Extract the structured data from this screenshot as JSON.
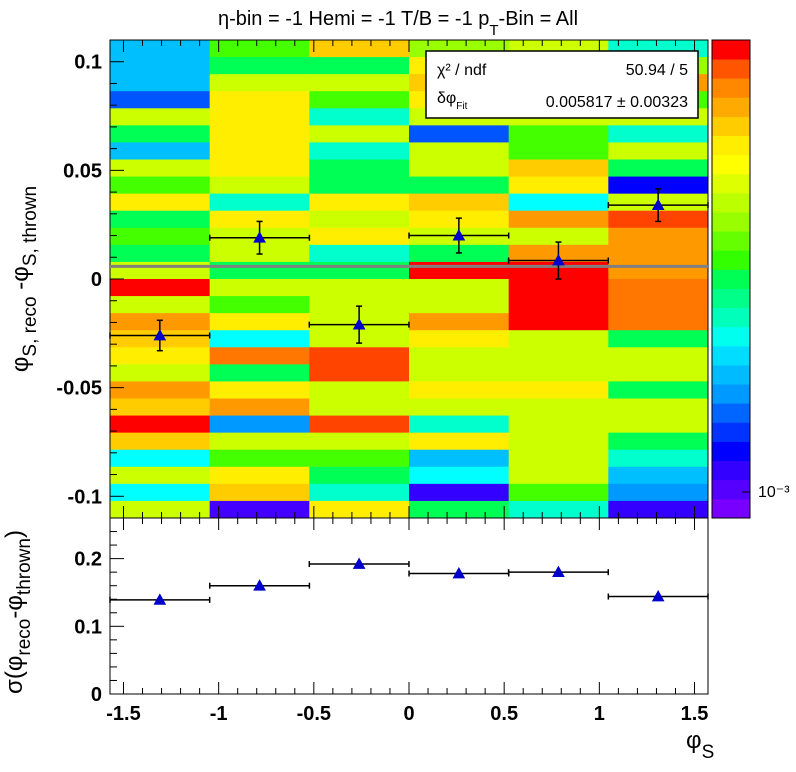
{
  "title": {
    "main": "η-bin = -1 Hemi = -1 T/B = -1 p",
    "sub": "T",
    "tail": "-Bin = All"
  },
  "stats": {
    "row1_label": "χ² / ndf",
    "row1_value": "50.94 / 5",
    "row2_label_main": "δφ",
    "row2_label_sub": "Fit",
    "row2_value": "0.005817 ± 0.00323"
  },
  "palette_label": "10⁻³",
  "chart_data": [
    {
      "type": "heatmap",
      "ylabel_main": "φ",
      "ylabel_sub1": "S, reco",
      "ylabel_mid": " -φ",
      "ylabel_sub2": "S, thrown",
      "xlim": [
        -1.5708,
        1.5708
      ],
      "ylim": [
        -0.11,
        0.11
      ],
      "yticks": [
        "0.1",
        "0.05",
        "0",
        "-0.05",
        "-0.1"
      ],
      "ytick_values": [
        0.1,
        0.05,
        0,
        -0.05,
        -0.1
      ],
      "x_bin_edges": [
        -1.5708,
        -1.0472,
        -0.5236,
        0.0,
        0.5236,
        1.0472,
        1.5708
      ],
      "n_y_bins": 28,
      "cell_colors": [
        [
          "#00bfff",
          "#44ff00",
          "#ffcc00",
          "#99ff00",
          "#ccff00",
          "#00ffcc"
        ],
        [
          "#00bfff",
          "#00ff55",
          "#00ff55",
          "#ffee00",
          "#ccff00",
          "#99ff00"
        ],
        [
          "#00bfff",
          "#ccff00",
          "#ccff00",
          "#ffcc00",
          "#ccff00",
          "#ff9900"
        ],
        [
          "#0055ff",
          "#ffee00",
          "#44ff00",
          "#ffee00",
          "#ccff00",
          "#44ff00"
        ],
        [
          "#ccff00",
          "#ffee00",
          "#00ffcc",
          "#ccff00",
          "#ccff00",
          "#ccff00"
        ],
        [
          "#00ff55",
          "#ffee00",
          "#ccff00",
          "#0055ff",
          "#44ff00",
          "#00ffcc"
        ],
        [
          "#00bfff",
          "#ffee00",
          "#00ffcc",
          "#ccff00",
          "#44ff00",
          "#ccff00"
        ],
        [
          "#ccff00",
          "#ffee00",
          "#00ff55",
          "#ccff00",
          "#ffcc00",
          "#00ff55"
        ],
        [
          "#44ff00",
          "#ccff00",
          "#00ff55",
          "#00ff55",
          "#ffee00",
          "#0000ff"
        ],
        [
          "#ffee00",
          "#00ffcc",
          "#ffee00",
          "#ffcc00",
          "#00ffff",
          "#ccff00"
        ],
        [
          "#00ff55",
          "#ffee00",
          "#ccff00",
          "#ffee00",
          "#ff9900",
          "#ff4400"
        ],
        [
          "#44ff00",
          "#ccff00",
          "#ffee00",
          "#ccff00",
          "#ccff00",
          "#ff9900"
        ],
        [
          "#00ff55",
          "#ccff00",
          "#00ffcc",
          "#00ff55",
          "#ff9900",
          "#ff9900"
        ],
        [
          "#ccff00",
          "#00ff55",
          "#00ff55",
          "#ff0000",
          "#ff0000",
          "#ff9900"
        ],
        [
          "#ff0000",
          "#ccff00",
          "#ccff00",
          "#ccff00",
          "#ff0000",
          "#ff7700"
        ],
        [
          "#ccff00",
          "#44ff00",
          "#ccff00",
          "#ccff00",
          "#ff0000",
          "#ff7700"
        ],
        [
          "#ff9900",
          "#ffee00",
          "#ccff00",
          "#ff9900",
          "#ff0000",
          "#ff7700"
        ],
        [
          "#ffcc00",
          "#00ffff",
          "#ccff00",
          "#ffee00",
          "#ccff00",
          "#00ff55"
        ],
        [
          "#ffee00",
          "#ff7700",
          "#ff4400",
          "#ccff00",
          "#ccff00",
          "#ccff00"
        ],
        [
          "#ccff00",
          "#00ff55",
          "#ff4400",
          "#ccff00",
          "#ccff00",
          "#ccff00"
        ],
        [
          "#ff9900",
          "#ffee00",
          "#ccff00",
          "#ffee00",
          "#ffee00",
          "#00ff55"
        ],
        [
          "#ffcc00",
          "#ff9900",
          "#ccff00",
          "#ccff00",
          "#ccff00",
          "#ccff00"
        ],
        [
          "#ff0000",
          "#0099ff",
          "#ff4400",
          "#00ffcc",
          "#ccff00",
          "#ccff00"
        ],
        [
          "#ffcc00",
          "#ccff00",
          "#ccff00",
          "#ffee00",
          "#ccff00",
          "#00ff55"
        ],
        [
          "#00ffff",
          "#44ff00",
          "#44ff00",
          "#00bfff",
          "#ccff00",
          "#00ffcc"
        ],
        [
          "#ccff00",
          "#ffee00",
          "#00ff55",
          "#00ffff",
          "#ccff00",
          "#00bfff"
        ],
        [
          "#00ffff",
          "#ffcc00",
          "#00ffcc",
          "#3300ff",
          "#44ff00",
          "#0099ff"
        ],
        [
          "#ccff00",
          "#4400ff",
          "#ffee00",
          "#00ff55",
          "#00ffcc",
          "#3300ff"
        ]
      ],
      "points": [
        {
          "x": -1.309,
          "xerr": 0.2618,
          "y": -0.026,
          "yerr": 0.007
        },
        {
          "x": -0.785,
          "xerr": 0.2618,
          "y": 0.019,
          "yerr": 0.0075
        },
        {
          "x": -0.262,
          "xerr": 0.2618,
          "y": -0.021,
          "yerr": 0.0085
        },
        {
          "x": 0.262,
          "xerr": 0.2618,
          "y": 0.02,
          "yerr": 0.008
        },
        {
          "x": 0.785,
          "xerr": 0.2618,
          "y": 0.0085,
          "yerr": 0.0085
        },
        {
          "x": 1.309,
          "xerr": 0.2618,
          "y": 0.034,
          "yerr": 0.0075
        }
      ],
      "fit_line_y": 0.005817
    },
    {
      "type": "scatter",
      "ylabel": "σ(φ_reco-φ_thrown)",
      "ylabel_pre": "σ(φ",
      "ylabel_sub1": "reco",
      "ylabel_mid": "-φ",
      "ylabel_sub2": "thrown",
      "ylabel_post": ")",
      "xlabel_main": "φ",
      "xlabel_sub": "S",
      "xlim": [
        -1.5708,
        1.5708
      ],
      "ylim": [
        0,
        0.26
      ],
      "xticks": [
        "-1.5",
        "-1",
        "-0.5",
        "0",
        "0.5",
        "1",
        "1.5"
      ],
      "xtick_values": [
        -1.5,
        -1,
        -0.5,
        0,
        0.5,
        1,
        1.5
      ],
      "yticks": [
        "0",
        "0.1",
        "0.2"
      ],
      "ytick_values": [
        0,
        0.1,
        0.2
      ],
      "points": [
        {
          "x": -1.309,
          "xerr": 0.2618,
          "y": 0.139
        },
        {
          "x": -0.785,
          "xerr": 0.2618,
          "y": 0.16
        },
        {
          "x": -0.262,
          "xerr": 0.2618,
          "y": 0.192
        },
        {
          "x": 0.262,
          "xerr": 0.2618,
          "y": 0.178
        },
        {
          "x": 0.785,
          "xerr": 0.2618,
          "y": 0.18
        },
        {
          "x": 1.309,
          "xerr": 0.2618,
          "y": 0.144
        }
      ]
    }
  ],
  "palette_colors": [
    "#7700ff",
    "#5500ff",
    "#3300ff",
    "#0000ff",
    "#0033ff",
    "#0066ff",
    "#0099ff",
    "#00bbff",
    "#00ddff",
    "#00ffee",
    "#00ffbb",
    "#00ff88",
    "#00ff55",
    "#33ff00",
    "#66ff00",
    "#99ff00",
    "#bbff00",
    "#ddff00",
    "#ffff00",
    "#ffee00",
    "#ffcc00",
    "#ffaa00",
    "#ff8800",
    "#ff5500",
    "#ff0000"
  ]
}
